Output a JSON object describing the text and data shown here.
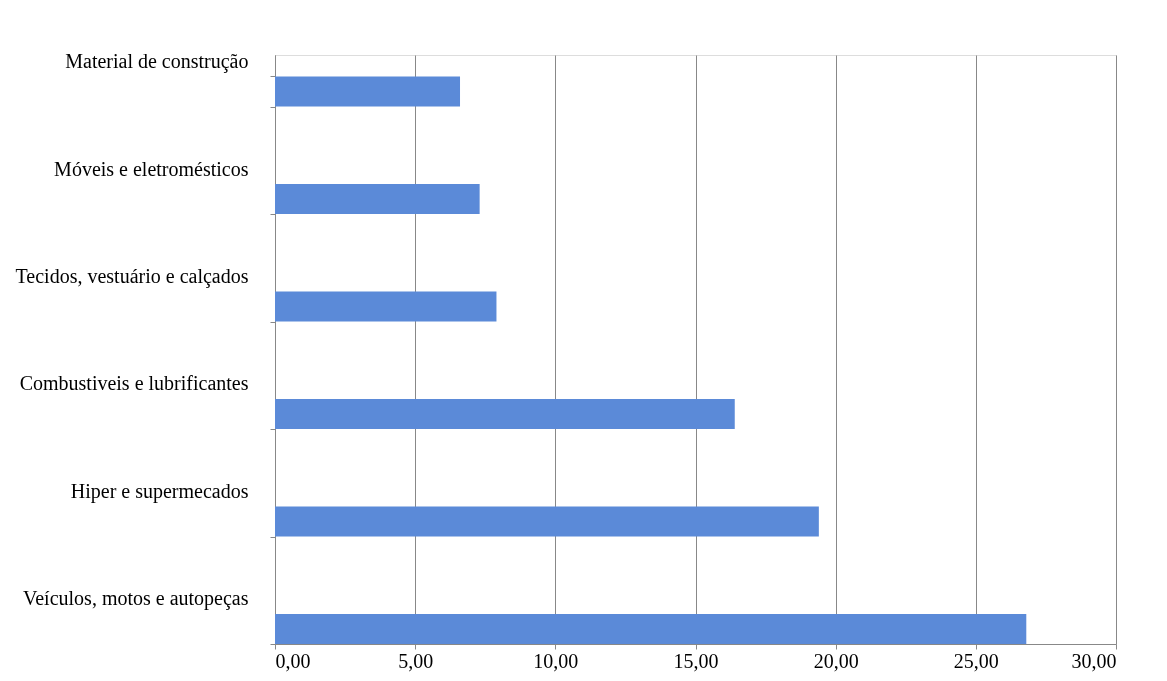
{
  "chart_data": {
    "type": "bar",
    "orientation": "horizontal",
    "categories": [
      "Material de construção",
      "Móveis e eletromésticos",
      "Tecidos, vestuário e calçados",
      "Combustiveis e lubrificantes",
      "Hiper e supermecados",
      "Veículos, motos e autopeças"
    ],
    "values": [
      6.6,
      7.3,
      7.9,
      16.4,
      19.4,
      26.8
    ],
    "color": "#5b8ad8",
    "xlim": [
      0,
      30
    ],
    "xticks": [
      {
        "value": 0,
        "label": "0,00"
      },
      {
        "value": 5,
        "label": "5,00"
      },
      {
        "value": 10,
        "label": "10,00"
      },
      {
        "value": 15,
        "label": "15,00"
      },
      {
        "value": 20,
        "label": "20,00"
      },
      {
        "value": 25,
        "label": "25,00"
      },
      {
        "value": 30,
        "label": "30,00"
      }
    ],
    "grid": "x"
  }
}
